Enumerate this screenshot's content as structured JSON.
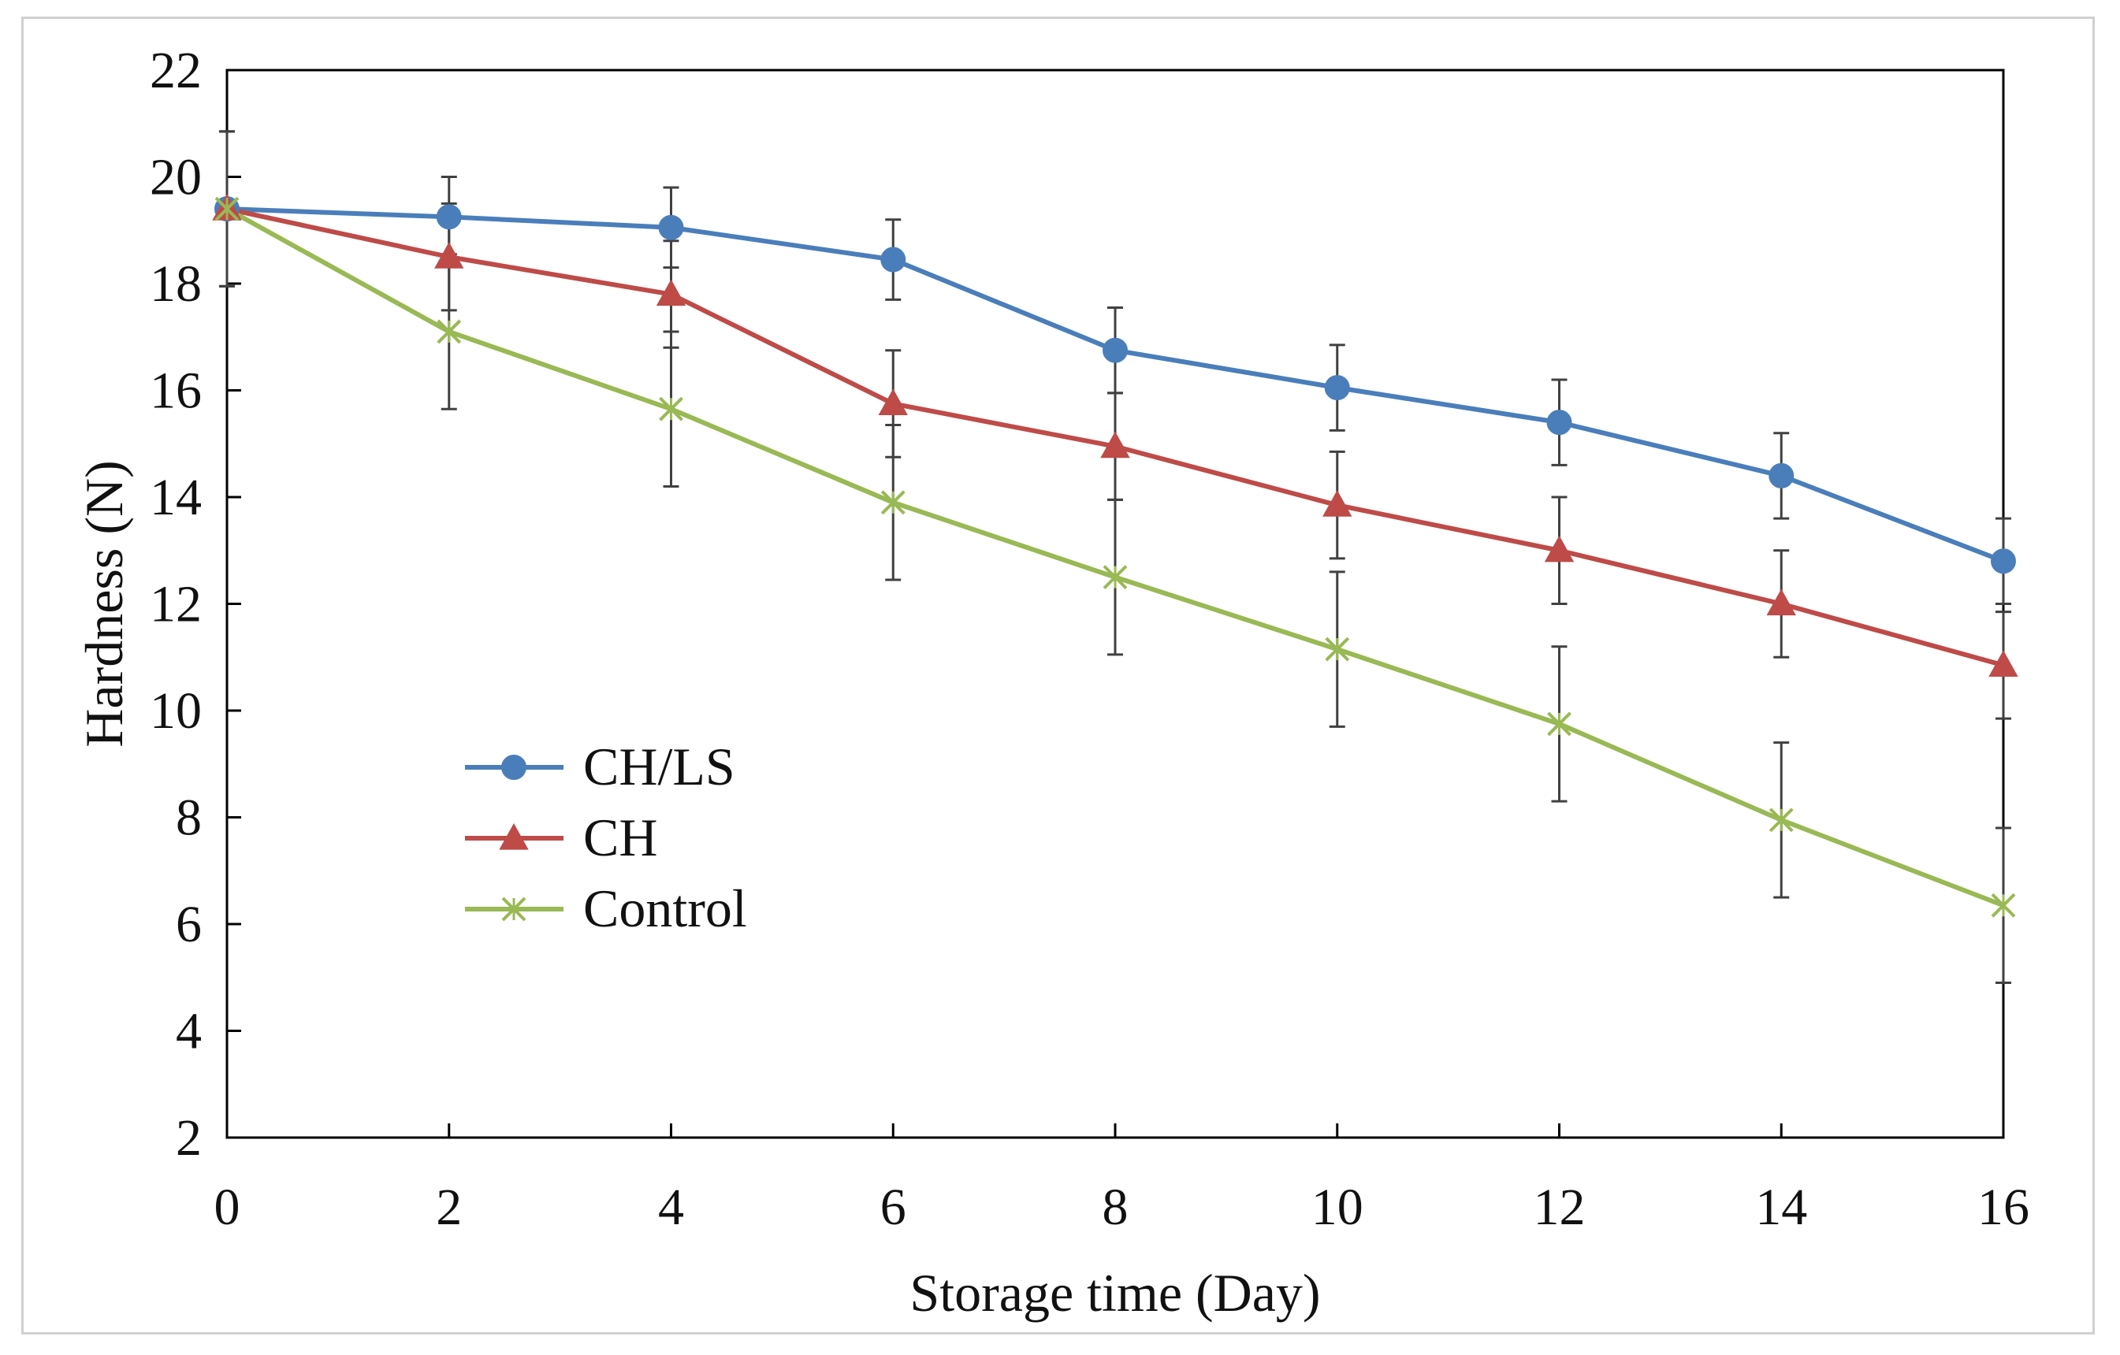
{
  "chart_data": {
    "type": "line",
    "title": "",
    "xlabel": "Storage time (Day)",
    "ylabel": "Hardness (N)",
    "xlim": [
      0,
      16
    ],
    "ylim": [
      2,
      22
    ],
    "x_ticks": [
      "0",
      "2",
      "4",
      "6",
      "8",
      "10",
      "12",
      "14",
      "16"
    ],
    "y_ticks": [
      "2",
      "4",
      "6",
      "8",
      "10",
      "12",
      "14",
      "16",
      "18",
      "20",
      "22"
    ],
    "x": [
      0,
      2,
      4,
      6,
      8,
      10,
      12,
      14,
      16
    ],
    "grid": false,
    "legend_position": "center-left",
    "series": [
      {
        "name": "CH/LS",
        "marker": "circle",
        "color": "#4a7ebb",
        "values": [
          19.4,
          19.25,
          19.05,
          18.45,
          16.75,
          16.05,
          15.4,
          14.4,
          12.8
        ],
        "errors": [
          1.45,
          0.75,
          0.75,
          0.75,
          0.8,
          0.8,
          0.8,
          0.8,
          0.8
        ]
      },
      {
        "name": "CH",
        "marker": "triangle",
        "color": "#be4b48",
        "values": [
          19.4,
          18.5,
          17.8,
          15.75,
          14.95,
          13.85,
          13.0,
          12.0,
          10.85
        ],
        "errors": [
          1.45,
          1.0,
          1.0,
          1.0,
          1.0,
          1.0,
          1.0,
          1.0,
          1.0
        ]
      },
      {
        "name": "Control",
        "marker": "x",
        "color": "#98b954",
        "values": [
          19.4,
          17.1,
          15.65,
          13.9,
          12.5,
          11.15,
          9.75,
          7.95,
          6.35
        ],
        "errors": [
          1.45,
          1.45,
          1.45,
          1.45,
          1.45,
          1.45,
          1.45,
          1.45,
          1.45
        ]
      }
    ]
  }
}
